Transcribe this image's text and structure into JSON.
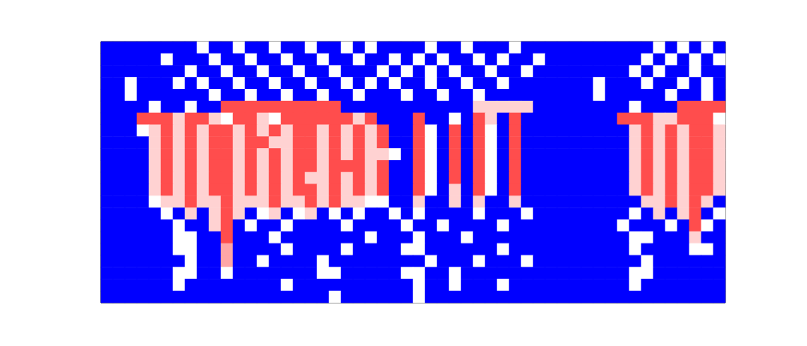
{
  "chart_data": {
    "type": "heatmap",
    "tick_labels": false,
    "zlim": [
      0,
      1
    ],
    "cells": [
      [
        0,
        0,
        0,
        0,
        0,
        0,
        0,
        0,
        0.5,
        0,
        0,
        0.5,
        0,
        0,
        0.5,
        0,
        0,
        0.5,
        0,
        0,
        0.5,
        0,
        0.5,
        0,
        0,
        0,
        0,
        0.5,
        0,
        0,
        0.5,
        0,
        0,
        0,
        0.5,
        0,
        0,
        0,
        0,
        0,
        0,
        0,
        0,
        0,
        0,
        0,
        0.5,
        0,
        0.5,
        0,
        0.5,
        0
      ],
      [
        0,
        0,
        0,
        0,
        0,
        0.5,
        0,
        0,
        0,
        0.5,
        0,
        0,
        0.5,
        0,
        0,
        0.5,
        0,
        0,
        0.5,
        0,
        0,
        0.5,
        0,
        0,
        0.5,
        0,
        0.5,
        0,
        0.5,
        0,
        0,
        0.5,
        0,
        0.5,
        0,
        0,
        0.5,
        0,
        0,
        0,
        0,
        0,
        0,
        0,
        0,
        0.5,
        0,
        0.5,
        0,
        0.5,
        0,
        0.5
      ],
      [
        0,
        0,
        0,
        0,
        0,
        0,
        0,
        0.5,
        0,
        0,
        0.5,
        0,
        0,
        0.5,
        0,
        0,
        0.5,
        0,
        0,
        0.5,
        0,
        0,
        0,
        0.5,
        0,
        0.5,
        0,
        0.5,
        0,
        0.5,
        0,
        0,
        0.5,
        0,
        0,
        0.5,
        0,
        0,
        0,
        0,
        0,
        0,
        0,
        0,
        0.5,
        0,
        0.5,
        0,
        0,
        0.5,
        0,
        0
      ],
      [
        0,
        0,
        0.5,
        0,
        0,
        0,
        0.5,
        0,
        0.5,
        0,
        0,
        0.5,
        0,
        0,
        0.5,
        0,
        0,
        0.5,
        0,
        0,
        0.5,
        0,
        0.5,
        0,
        0.5,
        0,
        0,
        0.5,
        0,
        0,
        0.5,
        0,
        0,
        0.5,
        0,
        0,
        0,
        0,
        0,
        0,
        0,
        0.5,
        0,
        0,
        0,
        0.5,
        0,
        0,
        0.5,
        0,
        0.5,
        0
      ],
      [
        0,
        0,
        0.5,
        0,
        0,
        0,
        0,
        0,
        0,
        0.5,
        0,
        0,
        0.5,
        0,
        0,
        0.5,
        0,
        0,
        0.5,
        0,
        0,
        0.5,
        0,
        0,
        0,
        0.5,
        0,
        0,
        0.5,
        0,
        0,
        0.5,
        0,
        0,
        0,
        0,
        0,
        0,
        0,
        0,
        0,
        0.5,
        0,
        0,
        0,
        0,
        0,
        0.5,
        0,
        0,
        0.5,
        0
      ],
      [
        0,
        0,
        0,
        0,
        0.5,
        0,
        0,
        0.5,
        0,
        0,
        0.9,
        0.9,
        0.9,
        0.9,
        0.9,
        0.9,
        0.9,
        0.9,
        0.9,
        0.9,
        0,
        0,
        0,
        0,
        0,
        0,
        0,
        0,
        0,
        0,
        0,
        0.6,
        0.6,
        0.6,
        0.6,
        0.6,
        0,
        0,
        0,
        0,
        0,
        0,
        0,
        0,
        0.5,
        0,
        0,
        0,
        0.9,
        0.9,
        0.9,
        0.9
      ],
      [
        0,
        0,
        0,
        0.9,
        0.9,
        0.9,
        0.6,
        0.9,
        0.9,
        0.6,
        0.5,
        0.9,
        0.9,
        0.6,
        0.5,
        0.9,
        0.9,
        0.9,
        0.9,
        0.9,
        0.9,
        0.6,
        0.9,
        0,
        0,
        0,
        0.9,
        0,
        0,
        0.5,
        0,
        0.9,
        0.6,
        0,
        0.9,
        0,
        0,
        0,
        0,
        0,
        0,
        0,
        0,
        0.9,
        0.9,
        0.9,
        0.6,
        0.6,
        0.9,
        0.9,
        0.9,
        0.5
      ],
      [
        0,
        0,
        0,
        0.5,
        0.6,
        0.9,
        0.6,
        0.9,
        0.6,
        0.9,
        0.9,
        0.6,
        0.9,
        0.6,
        0.9,
        0.6,
        0.9,
        0.9,
        0.6,
        0.9,
        0.6,
        0.9,
        0.6,
        0.9,
        0,
        0,
        0.9,
        0.5,
        0,
        0.9,
        0,
        0.9,
        0.5,
        0,
        0.9,
        0,
        0,
        0,
        0,
        0,
        0,
        0,
        0,
        0,
        0.6,
        0.9,
        0.6,
        0.9,
        0.6,
        0.9,
        0.9,
        0.6
      ],
      [
        0,
        0,
        0,
        0,
        0.6,
        0.9,
        0.6,
        0.9,
        0.6,
        0.9,
        0.9,
        0.6,
        0.9,
        0.9,
        0.6,
        0.6,
        0.9,
        0.9,
        0.6,
        0.9,
        0.6,
        0.9,
        0.6,
        0.9,
        0,
        0,
        0.9,
        0.5,
        0,
        0.9,
        0,
        0.9,
        0.5,
        0,
        0.9,
        0,
        0,
        0,
        0,
        0,
        0,
        0,
        0,
        0,
        0.6,
        0.9,
        0.6,
        0.9,
        0.6,
        0.9,
        0.9,
        0.6
      ],
      [
        0,
        0,
        0,
        0,
        0.6,
        0.9,
        0.6,
        0.9,
        0.6,
        0.9,
        0.9,
        0.6,
        0.9,
        0.6,
        0.9,
        0.6,
        0.9,
        0.9,
        0.6,
        0.9,
        0.6,
        0.9,
        0.6,
        0.6,
        0.5,
        0,
        0.9,
        0.5,
        0,
        0.9,
        0,
        0.9,
        0.5,
        0,
        0.9,
        0,
        0,
        0,
        0,
        0,
        0,
        0,
        0,
        0,
        0.6,
        0.9,
        0.6,
        0.9,
        0.6,
        0.9,
        0.9,
        0.6
      ],
      [
        0,
        0,
        0,
        0,
        0.6,
        0.9,
        0.6,
        0.9,
        0.6,
        0.9,
        0.9,
        0.6,
        0.9,
        0.6,
        0.9,
        0.6,
        0.9,
        0.9,
        0.6,
        0.9,
        0.9,
        0.9,
        0.6,
        0.9,
        0,
        0,
        0.9,
        0.5,
        0,
        0.9,
        0,
        0.9,
        0.5,
        0,
        0.9,
        0,
        0,
        0,
        0,
        0,
        0,
        0,
        0,
        0,
        0.6,
        0.9,
        0.6,
        0.9,
        0.6,
        0.9,
        0.9,
        0.6
      ],
      [
        0,
        0,
        0,
        0,
        0.6,
        0.9,
        0.6,
        0.9,
        0.6,
        0.9,
        0.9,
        0.6,
        0.9,
        0.6,
        0.9,
        0.6,
        0.9,
        0.6,
        0.6,
        0.9,
        0.6,
        0.9,
        0.6,
        0.9,
        0,
        0,
        0.9,
        0.5,
        0,
        0.9,
        0,
        0.9,
        0.5,
        0,
        0.9,
        0,
        0,
        0,
        0,
        0,
        0,
        0,
        0,
        0,
        0.6,
        0.9,
        0.6,
        0.9,
        0.6,
        0.9,
        0.9,
        0.6
      ],
      [
        0,
        0,
        0,
        0,
        0.6,
        0.9,
        0.6,
        0.9,
        0.6,
        0.9,
        0.9,
        0.6,
        0.9,
        0.6,
        0.9,
        0.6,
        0.9,
        0.9,
        0.6,
        0.9,
        0.6,
        0.9,
        0.6,
        0.9,
        0,
        0,
        0.9,
        0.5,
        0,
        0.6,
        0,
        0.9,
        0.5,
        0,
        0.9,
        0,
        0,
        0,
        0,
        0,
        0,
        0,
        0,
        0,
        0.6,
        0.9,
        0.6,
        0.9,
        0.6,
        0.9,
        0.9,
        0.6
      ],
      [
        0,
        0,
        0,
        0,
        0.5,
        0.6,
        0.6,
        0.9,
        0.6,
        0.6,
        0.9,
        0.6,
        0.6,
        0.6,
        0.9,
        0.6,
        0.6,
        0.9,
        0.6,
        0.9,
        0.6,
        0.6,
        0.5,
        0.5,
        0,
        0,
        0.6,
        0,
        0,
        0.6,
        0,
        0.6,
        0,
        0,
        0.6,
        0,
        0,
        0,
        0,
        0,
        0,
        0,
        0,
        0,
        0,
        0.6,
        0.6,
        0.9,
        0.6,
        0.9,
        0.6,
        0
      ],
      [
        0,
        0,
        0,
        0,
        0,
        0.5,
        0,
        0.6,
        0,
        0.6,
        0.9,
        0.6,
        0,
        0.5,
        0.6,
        0,
        0.5,
        0.6,
        0,
        0.5,
        0,
        0.5,
        0,
        0,
        0.5,
        0,
        0.5,
        0,
        0,
        0,
        0,
        0.5,
        0,
        0,
        0,
        0.5,
        0,
        0,
        0,
        0,
        0,
        0,
        0,
        0,
        0.5,
        0,
        0.6,
        0,
        0.6,
        0.9,
        0,
        0.5
      ],
      [
        0,
        0,
        0,
        0,
        0,
        0,
        0.5,
        0,
        0,
        0.6,
        0.9,
        0,
        0.5,
        0,
        0,
        0.5,
        0,
        0,
        0,
        0,
        0.5,
        0,
        0,
        0,
        0,
        0.5,
        0,
        0,
        0.5,
        0,
        0,
        0,
        0,
        0.5,
        0,
        0,
        0,
        0,
        0,
        0,
        0,
        0,
        0,
        0.5,
        0,
        0,
        0,
        0.5,
        0,
        0.9,
        0.5,
        0
      ],
      [
        0,
        0,
        0,
        0,
        0,
        0,
        0.5,
        0.5,
        0,
        0,
        0.9,
        0,
        0,
        0,
        0.5,
        0,
        0,
        0,
        0,
        0,
        0,
        0,
        0.5,
        0,
        0,
        0,
        0.5,
        0,
        0,
        0,
        0.5,
        0,
        0,
        0,
        0,
        0,
        0,
        0,
        0,
        0,
        0,
        0,
        0,
        0,
        0.5,
        0.5,
        0,
        0,
        0,
        0.6,
        0,
        0
      ],
      [
        0,
        0,
        0,
        0,
        0,
        0,
        0.5,
        0.5,
        0,
        0,
        0.7,
        0,
        0,
        0,
        0,
        0.5,
        0,
        0,
        0,
        0,
        0.5,
        0,
        0,
        0,
        0,
        0.5,
        0.5,
        0,
        0,
        0,
        0,
        0,
        0,
        0.5,
        0,
        0,
        0,
        0,
        0,
        0,
        0,
        0,
        0,
        0,
        0.5,
        0,
        0,
        0,
        0,
        0.5,
        0.5,
        0
      ],
      [
        0,
        0,
        0,
        0,
        0,
        0,
        0,
        0.5,
        0,
        0,
        0.7,
        0,
        0,
        0.5,
        0,
        0,
        0,
        0,
        0.5,
        0,
        0,
        0,
        0,
        0,
        0,
        0,
        0,
        0.5,
        0,
        0,
        0,
        0.5,
        0,
        0,
        0,
        0.5,
        0,
        0,
        0,
        0,
        0,
        0,
        0,
        0,
        0,
        0.5,
        0,
        0,
        0,
        0,
        0,
        0
      ],
      [
        0,
        0,
        0,
        0,
        0,
        0,
        0.5,
        0.5,
        0,
        0,
        0.5,
        0,
        0,
        0,
        0,
        0,
        0,
        0,
        0.5,
        0.5,
        0,
        0,
        0,
        0,
        0,
        0.5,
        0.5,
        0,
        0,
        0.5,
        0,
        0,
        0,
        0,
        0,
        0,
        0,
        0,
        0,
        0,
        0,
        0,
        0,
        0,
        0.5,
        0.5,
        0,
        0,
        0,
        0,
        0,
        0
      ],
      [
        0,
        0,
        0,
        0,
        0,
        0,
        0.5,
        0,
        0,
        0,
        0,
        0,
        0,
        0,
        0,
        0.5,
        0,
        0,
        0,
        0,
        0,
        0,
        0,
        0,
        0,
        0,
        0.5,
        0,
        0,
        0.5,
        0,
        0,
        0,
        0.5,
        0,
        0,
        0,
        0,
        0,
        0,
        0,
        0,
        0,
        0,
        0.5,
        0,
        0,
        0,
        0,
        0,
        0,
        0
      ],
      [
        0,
        0,
        0,
        0,
        0,
        0,
        0,
        0,
        0,
        0,
        0,
        0,
        0,
        0,
        0,
        0,
        0,
        0,
        0,
        0.5,
        0,
        0,
        0,
        0,
        0,
        0,
        0.5,
        0,
        0,
        0,
        0,
        0,
        0,
        0,
        0,
        0,
        0,
        0,
        0,
        0,
        0,
        0,
        0,
        0,
        0,
        0,
        0,
        0,
        0,
        0,
        0,
        0
      ]
    ]
  }
}
